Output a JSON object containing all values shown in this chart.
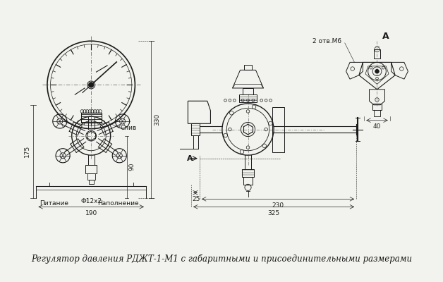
{
  "title": "Регулятор давления РДЖТ-1-М1 с габаритными и присоединительными размерами",
  "title_fontsize": 8.5,
  "bg_color": "#f2f2ee",
  "line_color": "#1a1a1a",
  "dim_color": "#222222",
  "annotations": {
    "sliv": "Слив",
    "питание": "Питание",
    "наполнение": "Наполнение",
    "phi": "Ф12х2",
    "dim_190": "190",
    "dim_175": "175",
    "dim_330": "330",
    "dim_90": "90",
    "dim_25": "25",
    "dim_230": "230",
    "dim_325": "325",
    "dim_40": "40",
    "label_A_top": "A",
    "label_A_side": "A",
    "label_2otv": "2 отв.М6"
  }
}
